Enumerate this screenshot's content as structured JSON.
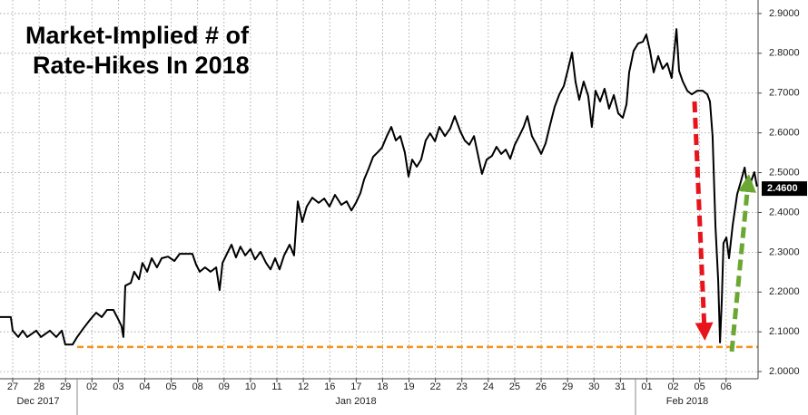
{
  "chart_data": {
    "type": "line",
    "title": [
      "Market-Implied # of",
      "Rate-Hikes In 2018"
    ],
    "xlim": [
      -0.48,
      28.21
    ],
    "ylim": [
      1.982,
      2.934
    ],
    "xticks": [
      {
        "value": 0,
        "label": "27"
      },
      {
        "value": 1,
        "label": "28"
      },
      {
        "value": 2,
        "label": "29"
      },
      {
        "value": 3,
        "label": "02"
      },
      {
        "value": 4,
        "label": "03"
      },
      {
        "value": 5,
        "label": "04"
      },
      {
        "value": 6,
        "label": "05"
      },
      {
        "value": 7,
        "label": "08"
      },
      {
        "value": 8,
        "label": "09"
      },
      {
        "value": 9,
        "label": "10"
      },
      {
        "value": 10,
        "label": "11"
      },
      {
        "value": 11,
        "label": "12"
      },
      {
        "value": 12,
        "label": "16"
      },
      {
        "value": 13,
        "label": "17"
      },
      {
        "value": 14,
        "label": "18"
      },
      {
        "value": 15,
        "label": "19"
      },
      {
        "value": 16,
        "label": "22"
      },
      {
        "value": 17,
        "label": "23"
      },
      {
        "value": 18,
        "label": "24"
      },
      {
        "value": 19,
        "label": "25"
      },
      {
        "value": 20,
        "label": "26"
      },
      {
        "value": 21,
        "label": "29"
      },
      {
        "value": 22,
        "label": "30"
      },
      {
        "value": 23,
        "label": "31"
      },
      {
        "value": 24,
        "label": "01"
      },
      {
        "value": 25,
        "label": "02"
      },
      {
        "value": 26,
        "label": "05"
      },
      {
        "value": 27,
        "label": "06"
      }
    ],
    "x_group_labels": [
      "Dec 2017",
      "Jan 2018",
      "Feb 2018"
    ],
    "yticks": [
      {
        "value": 2.0,
        "label": "2.0000"
      },
      {
        "value": 2.1,
        "label": "2.1000"
      },
      {
        "value": 2.2,
        "label": "2.2000"
      },
      {
        "value": 2.3,
        "label": "2.3000"
      },
      {
        "value": 2.4,
        "label": "2.4000"
      },
      {
        "value": 2.5,
        "label": "2.5000"
      },
      {
        "value": 2.6,
        "label": "2.6000"
      },
      {
        "value": 2.7,
        "label": "2.7000"
      },
      {
        "value": 2.8,
        "label": "2.8000"
      },
      {
        "value": 2.9,
        "label": "2.9000"
      }
    ],
    "grid": true,
    "series": [
      {
        "color": "#000000",
        "x": [
          -0.48,
          -0.07,
          0,
          0.21,
          0.38,
          0.55,
          0.89,
          1.07,
          1.41,
          1.65,
          1.86,
          1.99,
          2.27,
          2.44,
          2.68,
          2.95,
          3.16,
          3.37,
          3.57,
          3.81,
          3.99,
          4.12,
          4.19,
          4.26,
          4.47,
          4.6,
          4.78,
          4.91,
          5.09,
          5.26,
          5.46,
          5.64,
          5.88,
          6.12,
          6.32,
          6.8,
          6.94,
          7.08,
          7.28,
          7.49,
          7.7,
          7.83,
          7.94,
          8.11,
          8.28,
          8.45,
          8.62,
          8.8,
          9.0,
          9.17,
          9.38,
          9.59,
          9.76,
          9.93,
          10.1,
          10.27,
          10.48,
          10.65,
          10.79,
          10.96,
          11.13,
          11.34,
          11.58,
          11.79,
          11.99,
          12.2,
          12.44,
          12.64,
          12.82,
          12.99,
          13.16,
          13.3,
          13.47,
          13.64,
          13.81,
          13.98,
          14.16,
          14.33,
          14.5,
          14.67,
          14.84,
          14.98,
          15.12,
          15.29,
          15.46,
          15.63,
          15.8,
          15.98,
          16.15,
          16.36,
          16.56,
          16.73,
          16.94,
          17.11,
          17.28,
          17.46,
          17.59,
          17.76,
          17.94,
          18.14,
          18.31,
          18.49,
          18.66,
          18.83,
          19.0,
          19.17,
          19.34,
          19.48,
          19.65,
          19.83,
          20.0,
          20.17,
          20.34,
          20.51,
          20.69,
          20.86,
          21.03,
          21.17,
          21.3,
          21.44,
          21.61,
          21.78,
          21.92,
          22.06,
          22.23,
          22.4,
          22.57,
          22.75,
          22.92,
          23.09,
          23.23,
          23.33,
          23.5,
          23.67,
          23.85,
          23.98,
          24.12,
          24.26,
          24.43,
          24.6,
          24.77,
          24.94,
          25.12,
          25.22,
          25.36,
          25.53,
          25.7,
          25.91,
          26.11,
          26.29,
          26.39,
          26.49,
          26.6,
          26.7,
          26.77,
          26.84,
          26.9,
          27.01,
          27.11,
          27.25,
          27.42,
          27.56,
          27.7,
          27.83,
          27.97,
          28.07,
          28.17
        ],
        "values": [
          2.137,
          2.137,
          2.103,
          2.087,
          2.103,
          2.087,
          2.103,
          2.087,
          2.103,
          2.087,
          2.103,
          2.068,
          2.068,
          2.087,
          2.109,
          2.132,
          2.148,
          2.137,
          2.155,
          2.155,
          2.132,
          2.114,
          2.087,
          2.216,
          2.223,
          2.251,
          2.232,
          2.273,
          2.251,
          2.285,
          2.262,
          2.285,
          2.289,
          2.278,
          2.296,
          2.296,
          2.269,
          2.251,
          2.262,
          2.251,
          2.262,
          2.205,
          2.273,
          2.296,
          2.319,
          2.287,
          2.314,
          2.292,
          2.308,
          2.282,
          2.301,
          2.273,
          2.257,
          2.285,
          2.257,
          2.292,
          2.319,
          2.292,
          2.428,
          2.376,
          2.415,
          2.437,
          2.424,
          2.435,
          2.415,
          2.444,
          2.419,
          2.428,
          2.405,
          2.424,
          2.449,
          2.483,
          2.51,
          2.54,
          2.551,
          2.563,
          2.592,
          2.615,
          2.581,
          2.592,
          2.551,
          2.49,
          2.533,
          2.515,
          2.533,
          2.581,
          2.599,
          2.579,
          2.615,
          2.592,
          2.611,
          2.642,
          2.604,
          2.581,
          2.57,
          2.592,
          2.551,
          2.497,
          2.533,
          2.542,
          2.565,
          2.547,
          2.558,
          2.535,
          2.57,
          2.592,
          2.615,
          2.642,
          2.592,
          2.57,
          2.547,
          2.574,
          2.62,
          2.665,
          2.697,
          2.718,
          2.763,
          2.802,
          2.729,
          2.683,
          2.729,
          2.693,
          2.615,
          2.706,
          2.679,
          2.711,
          2.661,
          2.695,
          2.649,
          2.638,
          2.672,
          2.752,
          2.806,
          2.825,
          2.829,
          2.847,
          2.806,
          2.752,
          2.793,
          2.761,
          2.775,
          2.738,
          2.861,
          2.756,
          2.729,
          2.706,
          2.697,
          2.706,
          2.706,
          2.697,
          2.679,
          2.592,
          2.364,
          2.228,
          2.073,
          2.182,
          2.323,
          2.337,
          2.285,
          2.369,
          2.446,
          2.478,
          2.513,
          2.456,
          2.483,
          2.501,
          2.465
        ]
      }
    ],
    "reference_line": {
      "value": 2.062,
      "color": "#f7941d"
    },
    "last_value_label": {
      "value": 2.46,
      "label": "2.4600"
    }
  }
}
